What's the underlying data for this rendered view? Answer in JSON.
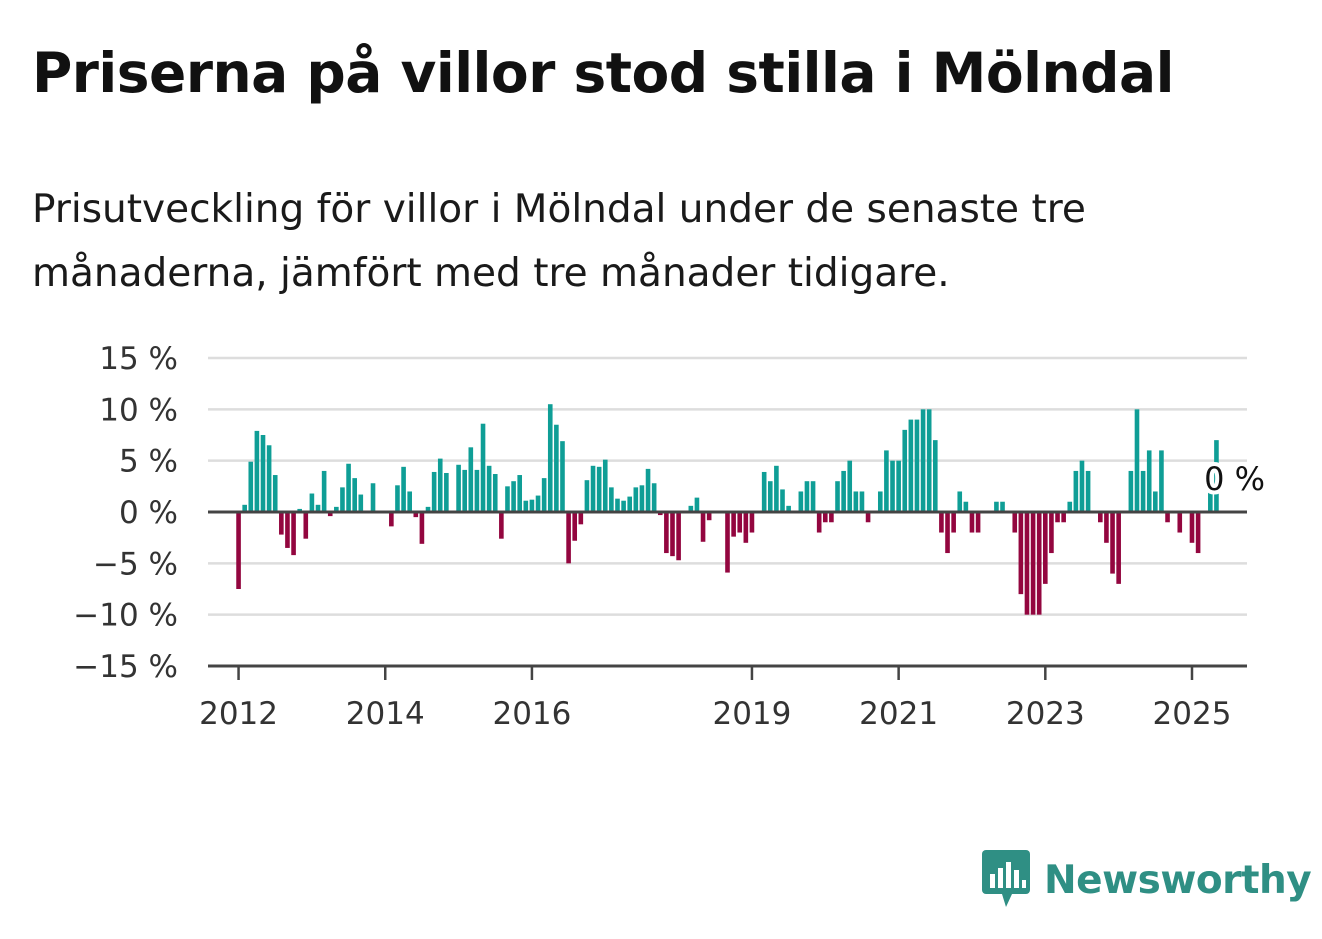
{
  "title": "Priserna på villor stod stilla i Mölndal",
  "subtitle": "Prisutveckling för villor i Mölndal under de senaste tre månaderna, jämfört med tre månader tidigare.",
  "brand": {
    "name": "Newsworthy",
    "color": "#2f8f84",
    "icon": "newsworthy-logo-icon"
  },
  "colors": {
    "positive": "#0f9e96",
    "negative": "#93063f",
    "grid": "#dddddd",
    "axis": "#444444"
  },
  "chart_data": {
    "type": "bar",
    "title": "",
    "xlabel": "",
    "ylabel": "",
    "ylim": [
      -15,
      15
    ],
    "y_ticks": [
      15,
      10,
      5,
      0,
      -5,
      -10,
      -15
    ],
    "y_tick_labels": [
      "15 %",
      "10 %",
      "5 %",
      "0 %",
      "−5 %",
      "−10 %",
      "−15 %"
    ],
    "x_range": [
      "2011-08",
      "2025-10"
    ],
    "x_ticks": [
      {
        "x": "2012-01",
        "label": "2012"
      },
      {
        "x": "2014-01",
        "label": "2014"
      },
      {
        "x": "2016-01",
        "label": "2016"
      },
      {
        "x": "2019-01",
        "label": "2019"
      },
      {
        "x": "2021-01",
        "label": "2021"
      },
      {
        "x": "2023-01",
        "label": "2023"
      },
      {
        "x": "2025-01",
        "label": "2025"
      }
    ],
    "grid": true,
    "annotation": {
      "x": "2025-06",
      "y": 0,
      "label": "0 %"
    },
    "x": [
      "2012-01",
      "2012-02",
      "2012-03",
      "2012-04",
      "2012-05",
      "2012-06",
      "2012-07",
      "2012-08",
      "2012-09",
      "2012-10",
      "2012-11",
      "2012-12",
      "2013-01",
      "2013-02",
      "2013-03",
      "2013-04",
      "2013-05",
      "2013-06",
      "2013-07",
      "2013-08",
      "2013-09",
      "2013-10",
      "2013-11",
      "2013-12",
      "2014-01",
      "2014-02",
      "2014-03",
      "2014-04",
      "2014-05",
      "2014-06",
      "2014-07",
      "2014-08",
      "2014-09",
      "2014-10",
      "2014-11",
      "2014-12",
      "2015-01",
      "2015-02",
      "2015-03",
      "2015-04",
      "2015-05",
      "2015-06",
      "2015-07",
      "2015-08",
      "2015-09",
      "2015-10",
      "2015-11",
      "2015-12",
      "2016-01",
      "2016-02",
      "2016-03",
      "2016-04",
      "2016-05",
      "2016-06",
      "2016-07",
      "2016-08",
      "2016-09",
      "2016-10",
      "2016-11",
      "2016-12",
      "2017-01",
      "2017-02",
      "2017-03",
      "2017-04",
      "2017-05",
      "2017-06",
      "2017-07",
      "2017-08",
      "2017-09",
      "2017-10",
      "2017-11",
      "2017-12",
      "2018-01",
      "2018-02",
      "2018-03",
      "2018-04",
      "2018-05",
      "2018-06",
      "2018-07",
      "2018-08",
      "2018-09",
      "2018-10",
      "2018-11",
      "2018-12",
      "2019-01",
      "2019-02",
      "2019-03",
      "2019-04",
      "2019-05",
      "2019-06",
      "2019-07",
      "2019-08",
      "2019-09",
      "2019-10",
      "2019-11",
      "2019-12",
      "2020-01",
      "2020-02",
      "2020-03",
      "2020-04",
      "2020-05",
      "2020-06",
      "2020-07",
      "2020-08",
      "2020-09",
      "2020-10",
      "2020-11",
      "2020-12",
      "2021-01",
      "2021-02",
      "2021-03",
      "2021-04",
      "2021-05",
      "2021-06",
      "2021-07",
      "2021-08",
      "2021-09",
      "2021-10",
      "2021-11",
      "2021-12",
      "2022-01",
      "2022-02",
      "2022-03",
      "2022-04",
      "2022-05",
      "2022-06",
      "2022-07",
      "2022-08",
      "2022-09",
      "2022-10",
      "2022-11",
      "2022-12",
      "2023-01",
      "2023-02",
      "2023-03",
      "2023-04",
      "2023-05",
      "2023-06",
      "2023-07",
      "2023-08",
      "2023-09",
      "2023-10",
      "2023-11",
      "2023-12",
      "2024-01",
      "2024-02",
      "2024-03",
      "2024-04",
      "2024-05",
      "2024-06",
      "2024-07",
      "2024-08",
      "2024-09",
      "2024-10",
      "2024-11",
      "2024-12",
      "2025-01",
      "2025-02",
      "2025-03",
      "2025-04",
      "2025-05",
      "2025-06"
    ],
    "values": [
      -7.5,
      0.7,
      4.9,
      7.9,
      7.5,
      6.5,
      3.6,
      -2.2,
      -3.5,
      -4.2,
      0.3,
      -2.6,
      1.8,
      0.7,
      4.0,
      -0.4,
      0.5,
      2.4,
      4.7,
      3.3,
      1.7,
      0,
      2.8,
      0,
      0,
      -1.4,
      2.6,
      4.4,
      2.0,
      -0.5,
      -3.1,
      0.5,
      3.9,
      5.2,
      3.8,
      0,
      4.6,
      4.1,
      6.3,
      4.1,
      8.6,
      4.5,
      3.7,
      -2.6,
      2.5,
      3.0,
      3.6,
      1.1,
      1.2,
      1.6,
      3.3,
      10.5,
      8.5,
      6.9,
      -5.0,
      -2.8,
      -1.2,
      3.1,
      4.5,
      4.4,
      5.1,
      2.4,
      1.3,
      1.1,
      1.5,
      2.4,
      2.6,
      4.2,
      2.8,
      -0.3,
      -4.0,
      -4.3,
      -4.7,
      0,
      0.6,
      1.4,
      -2.9,
      -0.8,
      0,
      0,
      -5.9,
      -2.4,
      -2.0,
      -3.0,
      -2.0,
      0,
      3.9,
      3.0,
      4.5,
      2.2,
      0.6,
      0,
      2.0,
      3.0,
      3.0,
      -2.0,
      -1.0,
      -1.0,
      3.0,
      4.0,
      5.0,
      2.0,
      2.0,
      -1.0,
      0,
      2.0,
      6.0,
      5.0,
      5.0,
      8.0,
      9.0,
      9.0,
      10.0,
      10.0,
      7.0,
      -2.0,
      -4.0,
      -2.0,
      2.0,
      1.0,
      -2.0,
      -2.0,
      0,
      0,
      1.0,
      1.0,
      0,
      -2.0,
      -8.0,
      -10.0,
      -10.0,
      -10.0,
      -7.0,
      -4.0,
      -1.0,
      -1.0,
      1.0,
      4.0,
      5.0,
      4.0,
      0,
      -1.0,
      -3.0,
      -6.0,
      -7.0,
      0,
      4.0,
      10.0,
      4.0,
      6.0,
      2.0,
      6.0,
      -1.0,
      0,
      -2.0,
      0,
      -3.0,
      -4.0,
      0,
      2.0,
      7.0,
      0
    ]
  }
}
